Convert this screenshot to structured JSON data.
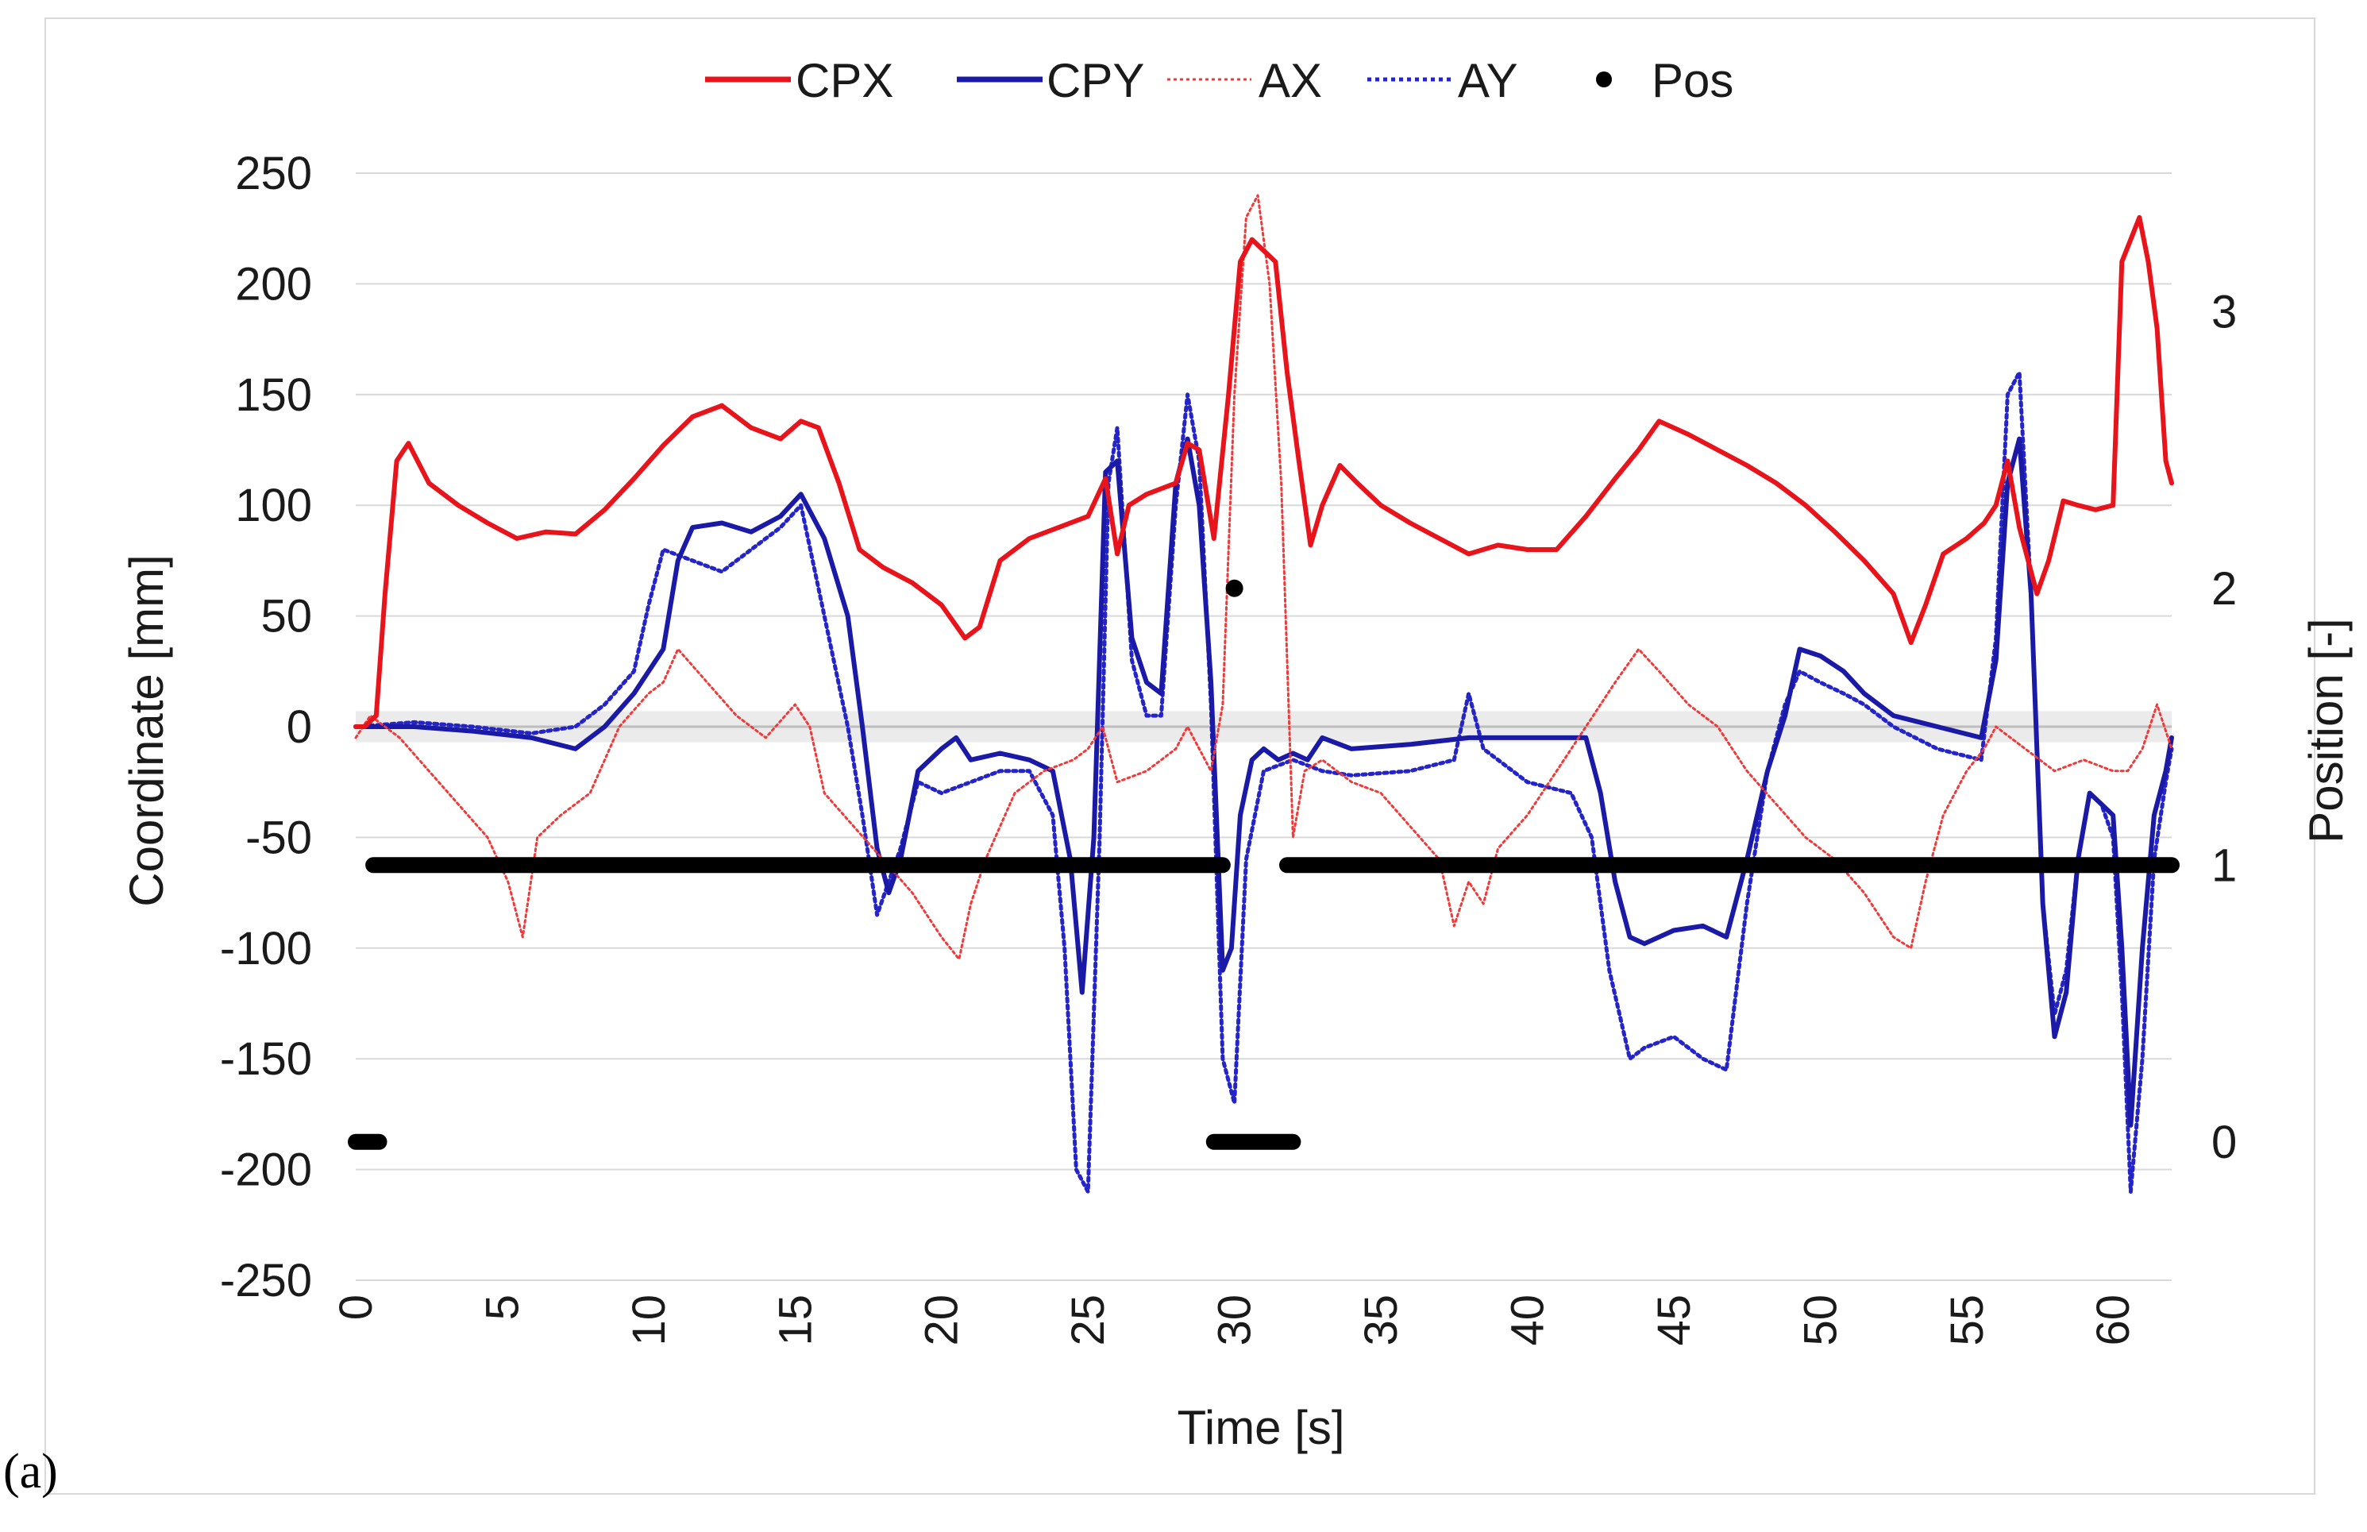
{
  "panel_label": "(a)",
  "chart_data": {
    "type": "line",
    "title": "",
    "xlabel": "Time [s]",
    "ylabel": "Coordinate [mm]",
    "y2label": "Position [-]",
    "xlim": [
      0,
      62
    ],
    "ylim": [
      -250,
      250
    ],
    "y2lim": [
      -0.5,
      3.5
    ],
    "x_ticks": [
      "0",
      "5",
      "10",
      "15",
      "20",
      "25",
      "30",
      "35",
      "40",
      "45",
      "50",
      "55",
      "60"
    ],
    "y_ticks": [
      "250",
      "200",
      "150",
      "100",
      "50",
      "0",
      "-50",
      "-100",
      "-150",
      "-200",
      "-250"
    ],
    "y2_ticks": [
      "3",
      "2",
      "1",
      "0"
    ],
    "grid": true,
    "legend_position": "top",
    "colors": {
      "cpx": "#e8141b",
      "cpy": "#1a1aa6",
      "ax": "#f03a3a",
      "ay": "#2424c8",
      "pos": "#000000",
      "grid": "#d9d9d9"
    },
    "series": [
      {
        "name": "CPX",
        "style": "solid",
        "axis": "left",
        "x": [
          0,
          0.3,
          0.7,
          1.0,
          1.4,
          1.8,
          2.5,
          3.5,
          4.5,
          5.5,
          6.5,
          7.5,
          8.5,
          9.5,
          10.5,
          11.5,
          12.5,
          13.5,
          14.5,
          15.2,
          15.8,
          16.5,
          17.2,
          18,
          19,
          20,
          20.8,
          21.3,
          22,
          23,
          24,
          25,
          25.6,
          26,
          26.4,
          27,
          28,
          28.4,
          28.8,
          29.3,
          29.8,
          30.2,
          30.6,
          31,
          31.4,
          31.8,
          32.2,
          32.6,
          33,
          33.6,
          34.2,
          35,
          36,
          37,
          38,
          39,
          40,
          41,
          42,
          43,
          43.8,
          44.5,
          45.5,
          46.5,
          47.5,
          48.5,
          49.5,
          50.5,
          51.5,
          52.5,
          53.1,
          53.6,
          54.2,
          55,
          55.6,
          56,
          56.4,
          56.8,
          57.4,
          57.8,
          58.3,
          58.8,
          59.4,
          60,
          60.3,
          60.6,
          60.9,
          61.2,
          61.5,
          61.8,
          62
        ],
        "y": [
          0,
          0,
          5,
          60,
          120,
          128,
          110,
          100,
          92,
          85,
          88,
          87,
          98,
          112,
          127,
          140,
          145,
          135,
          130,
          138,
          135,
          110,
          80,
          72,
          65,
          55,
          40,
          45,
          75,
          85,
          90,
          95,
          112,
          78,
          100,
          105,
          110,
          128,
          125,
          85,
          150,
          210,
          220,
          215,
          210,
          160,
          120,
          82,
          100,
          118,
          110,
          100,
          92,
          85,
          78,
          82,
          80,
          80,
          95,
          112,
          125,
          138,
          132,
          125,
          118,
          110,
          100,
          88,
          75,
          60,
          38,
          55,
          78,
          85,
          92,
          100,
          120,
          90,
          60,
          75,
          102,
          100,
          98,
          100,
          210,
          220,
          230,
          210,
          180,
          120,
          110
        ]
      },
      {
        "name": "CPY",
        "style": "solid",
        "axis": "left",
        "x": [
          0,
          2,
          4,
          6,
          7.5,
          8.5,
          9.5,
          10.5,
          11,
          11.5,
          12.5,
          13.5,
          14.5,
          15.2,
          16,
          16.8,
          17.3,
          17.8,
          18.2,
          18.6,
          19.2,
          20,
          20.5,
          21,
          22,
          23,
          23.8,
          24.4,
          24.8,
          25.2,
          25.6,
          26,
          26.5,
          27,
          27.5,
          28,
          28.4,
          28.8,
          29.2,
          29.6,
          29.9,
          30.2,
          30.6,
          31,
          31.5,
          32,
          32.5,
          33,
          34,
          36,
          38,
          40,
          41,
          42,
          42.5,
          43,
          43.5,
          44,
          45,
          46,
          46.8,
          47.5,
          48.2,
          48.8,
          49.3,
          50,
          50.8,
          51.5,
          52.5,
          54,
          55.5,
          56,
          56.4,
          56.8,
          57.2,
          57.6,
          58,
          58.4,
          58.8,
          59.2,
          59.6,
          60,
          60.3,
          60.6,
          61,
          61.4,
          61.8,
          62
        ],
        "y": [
          0,
          0,
          -2,
          -5,
          -10,
          0,
          15,
          35,
          75,
          90,
          92,
          88,
          95,
          105,
          85,
          50,
          0,
          -55,
          -75,
          -60,
          -20,
          -10,
          -5,
          -15,
          -12,
          -15,
          -20,
          -60,
          -120,
          -50,
          115,
          120,
          40,
          20,
          15,
          110,
          130,
          100,
          20,
          -110,
          -100,
          -40,
          -15,
          -10,
          -15,
          -12,
          -15,
          -5,
          -10,
          -8,
          -5,
          -5,
          -5,
          -5,
          -30,
          -70,
          -95,
          -98,
          -92,
          -90,
          -95,
          -60,
          -20,
          5,
          35,
          32,
          25,
          15,
          5,
          0,
          -5,
          30,
          110,
          130,
          60,
          -80,
          -140,
          -120,
          -60,
          -30,
          -35,
          -40,
          -100,
          -180,
          -100,
          -40,
          -20,
          -5
        ]
      },
      {
        "name": "AX",
        "style": "dotted",
        "axis": "left",
        "x": [
          0,
          0.5,
          1.5,
          2.5,
          3.5,
          4.5,
          5.2,
          5.7,
          6.2,
          7,
          8,
          9,
          10,
          10.5,
          11,
          12,
          13,
          14,
          15,
          15.5,
          16,
          17,
          18,
          19,
          20,
          20.6,
          21,
          21.5,
          22.5,
          23.5,
          24.5,
          25,
          25.5,
          26,
          27,
          28,
          28.4,
          28.8,
          29.2,
          29.6,
          30,
          30.4,
          30.8,
          31.2,
          31.6,
          32,
          32.4,
          33,
          34,
          35,
          36,
          37,
          37.5,
          38,
          38.5,
          39,
          40,
          41,
          42,
          43,
          43.8,
          44.5,
          45.5,
          46.5,
          47.5,
          48.5,
          49.5,
          50.5,
          51.5,
          52.5,
          53.1,
          53.6,
          54.2,
          55,
          55.6,
          56,
          56.5,
          57,
          58,
          59,
          60,
          60.5,
          61,
          61.5,
          62
        ],
        "y": [
          -5,
          5,
          -5,
          -20,
          -35,
          -50,
          -70,
          -95,
          -50,
          -40,
          -30,
          0,
          15,
          20,
          35,
          20,
          5,
          -5,
          10,
          0,
          -30,
          -45,
          -60,
          -75,
          -95,
          -105,
          -80,
          -60,
          -30,
          -20,
          -15,
          -10,
          0,
          -25,
          -20,
          -10,
          0,
          -10,
          -20,
          10,
          150,
          230,
          240,
          200,
          110,
          -50,
          -20,
          -15,
          -25,
          -30,
          -45,
          -60,
          -90,
          -70,
          -80,
          -55,
          -40,
          -20,
          0,
          20,
          35,
          25,
          10,
          0,
          -20,
          -35,
          -50,
          -60,
          -75,
          -95,
          -100,
          -70,
          -40,
          -20,
          -10,
          0,
          -5,
          -10,
          -20,
          -15,
          -20,
          -20,
          -10,
          10,
          -10
        ]
      },
      {
        "name": "AY",
        "style": "dotted",
        "axis": "left",
        "x": [
          0,
          2,
          4,
          6,
          7.5,
          8.5,
          9.5,
          10,
          10.5,
          11.5,
          12.5,
          13.5,
          14.5,
          15.2,
          16,
          16.8,
          17.3,
          17.8,
          18.2,
          18.6,
          19.2,
          20,
          21,
          22,
          23,
          23.8,
          24.2,
          24.6,
          25,
          25.4,
          25.7,
          26,
          26.5,
          27,
          27.5,
          28,
          28.4,
          28.8,
          29.2,
          29.6,
          30,
          30.4,
          31,
          32,
          33,
          34,
          36,
          37.5,
          38,
          38.5,
          40,
          41.5,
          42.2,
          42.8,
          43.5,
          44,
          45,
          46,
          46.8,
          47.5,
          48.2,
          48.8,
          49.3,
          50,
          50.8,
          51.5,
          52.5,
          54,
          55.5,
          56,
          56.4,
          56.8,
          57.2,
          57.6,
          58,
          58.4,
          58.8,
          59.2,
          59.6,
          60,
          60.3,
          60.6,
          61,
          61.4,
          61.8,
          62
        ],
        "y": [
          0,
          2,
          0,
          -3,
          0,
          10,
          25,
          55,
          80,
          75,
          70,
          80,
          90,
          100,
          50,
          0,
          -40,
          -85,
          -70,
          -55,
          -25,
          -30,
          -25,
          -20,
          -20,
          -40,
          -100,
          -200,
          -210,
          -50,
          110,
          135,
          30,
          5,
          5,
          100,
          150,
          120,
          10,
          -150,
          -170,
          -60,
          -20,
          -15,
          -20,
          -22,
          -20,
          -15,
          15,
          -10,
          -25,
          -30,
          -50,
          -110,
          -150,
          -145,
          -140,
          -150,
          -155,
          -80,
          -20,
          10,
          25,
          20,
          15,
          10,
          0,
          -10,
          -15,
          40,
          150,
          160,
          60,
          -80,
          -130,
          -110,
          -60,
          -30,
          -35,
          -50,
          -120,
          -210,
          -150,
          -60,
          -25,
          -10
        ]
      },
      {
        "name": "Pos",
        "style": "markers",
        "axis": "right",
        "segments": [
          {
            "x": [
              0,
              0.8
            ],
            "y": 0
          },
          {
            "x": [
              0.6,
              29.6
            ],
            "y": 1
          },
          {
            "x": [
              29.8,
              30.2
            ],
            "y": 2
          },
          {
            "x": [
              29.3,
              32.0
            ],
            "y": 0
          },
          {
            "x": [
              31.8,
              62
            ],
            "y": 1
          }
        ]
      }
    ]
  }
}
